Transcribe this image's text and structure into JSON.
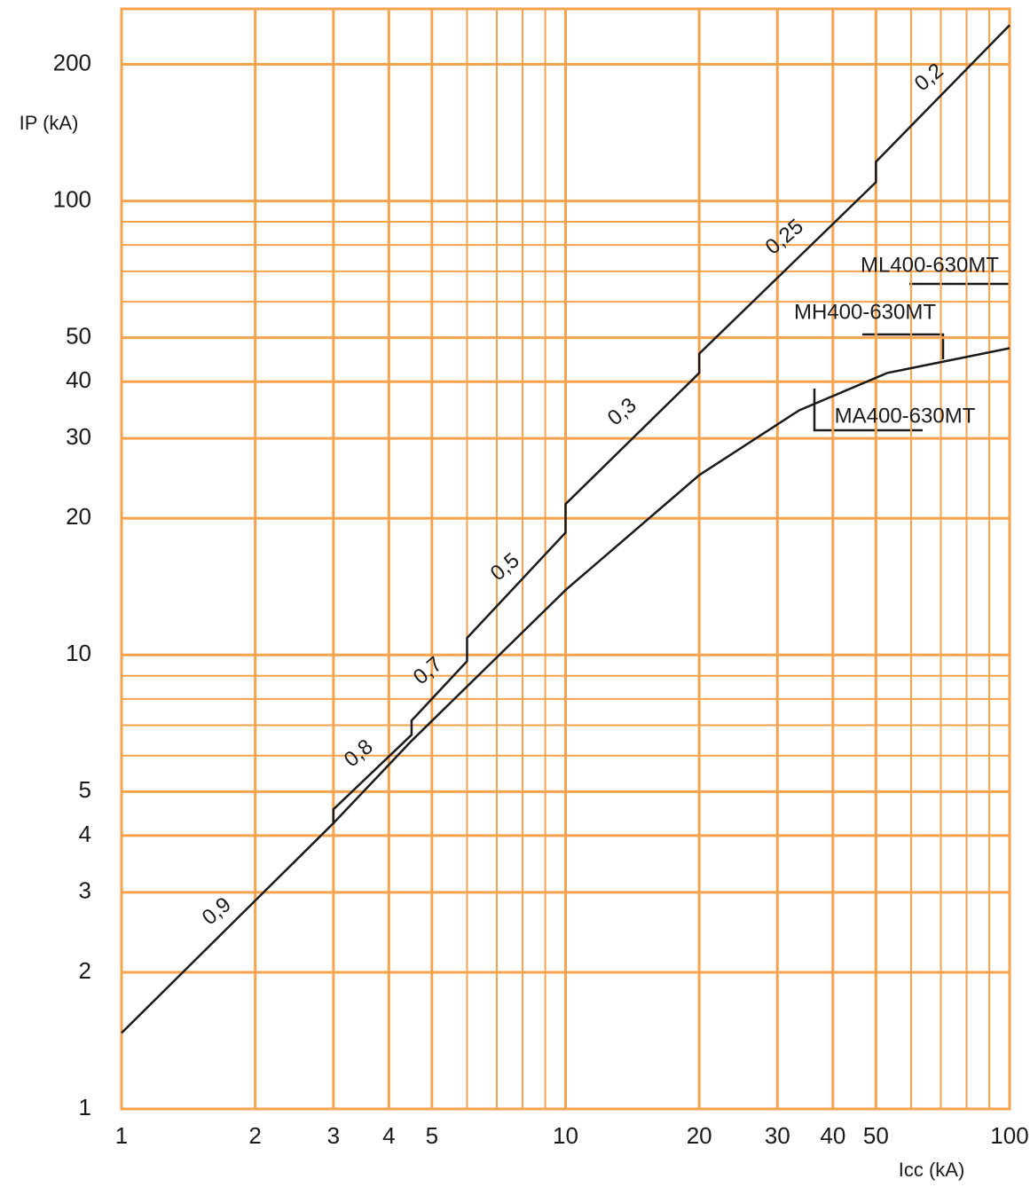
{
  "chart_data": {
    "type": "line",
    "y_label": "IP (kA)",
    "x_label": "Icc (kA)",
    "log_x": true,
    "log_y": true,
    "grid": true,
    "grid_color": "#f7a24c",
    "xlim": [
      1,
      100
    ],
    "ylim": [
      1,
      265
    ],
    "xticks": [
      1,
      2,
      3,
      4,
      5,
      10,
      20,
      30,
      40,
      50,
      100
    ],
    "yticks": [
      1,
      2,
      3,
      4,
      5,
      10,
      20,
      30,
      40,
      50,
      100,
      200
    ],
    "series": [
      {
        "color": "#1a1a1a",
        "x": [
          1,
          3,
          3,
          4.5,
          4.5,
          6,
          6,
          10,
          10,
          20,
          20,
          50,
          50,
          100
        ],
        "values": [
          1.47,
          4.26,
          4.57,
          6.67,
          7.17,
          9.69,
          10.9,
          18.6,
          21.5,
          41.8,
          46.1,
          110,
          122,
          244
        ]
      },
      {
        "name": "MA400-630MT",
        "color": "#1a1a1a",
        "x": [
          3,
          4.5,
          10,
          20,
          33.6,
          53,
          100
        ],
        "values": [
          4.26,
          6.47,
          13.9,
          24.9,
          34.6,
          41.8,
          47.4
        ]
      }
    ],
    "annotations": [
      "0,9",
      "0,8",
      "0,7",
      "0,5",
      "0,3",
      "0,25",
      "0,2",
      "ML400-630MT",
      "MH400-630MT"
    ]
  }
}
